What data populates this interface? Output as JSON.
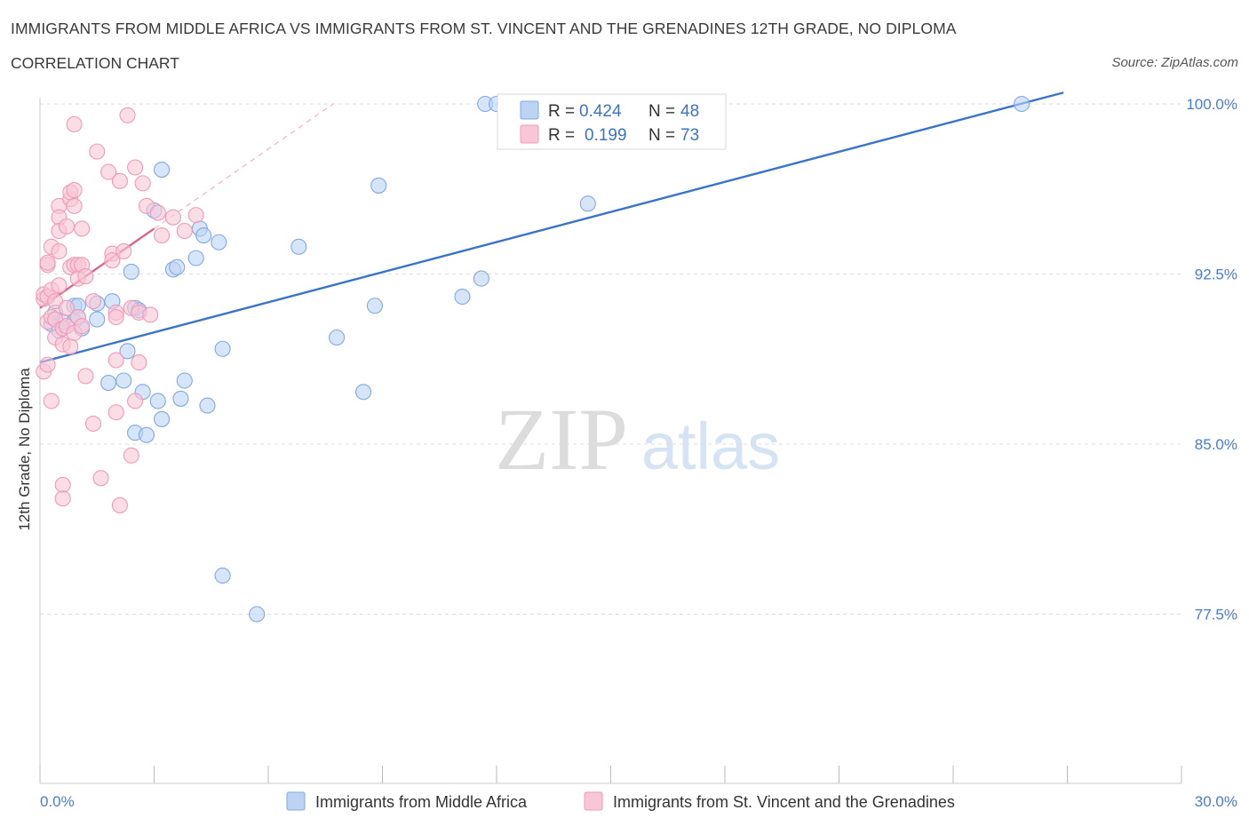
{
  "title": "IMMIGRANTS FROM MIDDLE AFRICA VS IMMIGRANTS FROM ST. VINCENT AND THE GRENADINES 12TH GRADE, NO DIPLOMA",
  "subtitle": "CORRELATION CHART",
  "source": "Source: ZipAtlas.com",
  "watermark": {
    "zip": "ZIP",
    "atlas": "atlas"
  },
  "chart_data": {
    "type": "scatter",
    "ylabel": "12th Grade, No Diploma",
    "xlim": [
      0,
      30
    ],
    "ylim": [
      70,
      100.8
    ],
    "x_tick_labels": [
      {
        "value": 0,
        "label": "0.0%"
      },
      {
        "value": 30,
        "label": "30.0%"
      }
    ],
    "y_ticks": [
      {
        "value": 100,
        "label": "100.0%"
      },
      {
        "value": 92.5,
        "label": "92.5%"
      },
      {
        "value": 85,
        "label": "85.0%"
      },
      {
        "value": 77.5,
        "label": "77.5%"
      }
    ],
    "legend_stats": [
      {
        "r_label": "R =",
        "r": "0.424",
        "n_label": "N =",
        "n": "48"
      },
      {
        "r_label": "R =",
        "r": "0.199",
        "n_label": "N =",
        "n": "73"
      }
    ],
    "series": [
      {
        "name": "Immigrants from Middle Africa",
        "color": "#7fa9e6",
        "fill": "#bcd3f3",
        "line_color": "#3a74c9",
        "trend": {
          "x": [
            0,
            26.9
          ],
          "y": [
            88.6,
            100.5
          ]
        },
        "points": [
          [
            0.3,
            90.3
          ],
          [
            0.4,
            90.8
          ],
          [
            0.5,
            90.0
          ],
          [
            0.6,
            90.4
          ],
          [
            0.9,
            90.4
          ],
          [
            0.9,
            91.1
          ],
          [
            1.0,
            91.1
          ],
          [
            1.1,
            90.1
          ],
          [
            1.0,
            90.6
          ],
          [
            1.5,
            91.2
          ],
          [
            1.5,
            90.5
          ],
          [
            1.8,
            87.7
          ],
          [
            1.9,
            91.3
          ],
          [
            2.2,
            87.8
          ],
          [
            2.3,
            89.1
          ],
          [
            2.4,
            92.6
          ],
          [
            2.5,
            85.5
          ],
          [
            2.5,
            91.0
          ],
          [
            2.6,
            90.9
          ],
          [
            2.7,
            87.3
          ],
          [
            2.8,
            85.4
          ],
          [
            3.0,
            95.3
          ],
          [
            3.1,
            86.9
          ],
          [
            3.2,
            86.1
          ],
          [
            3.2,
            97.1
          ],
          [
            3.5,
            92.7
          ],
          [
            3.6,
            92.8
          ],
          [
            3.7,
            87.0
          ],
          [
            3.8,
            87.8
          ],
          [
            4.1,
            93.2
          ],
          [
            4.2,
            94.5
          ],
          [
            4.3,
            94.2
          ],
          [
            4.4,
            86.7
          ],
          [
            4.7,
            93.9
          ],
          [
            4.8,
            89.2
          ],
          [
            4.8,
            79.2
          ],
          [
            5.7,
            77.5
          ],
          [
            6.8,
            93.7
          ],
          [
            7.8,
            89.7
          ],
          [
            8.5,
            87.3
          ],
          [
            8.8,
            91.1
          ],
          [
            8.9,
            96.4
          ],
          [
            11.1,
            91.5
          ],
          [
            11.6,
            92.3
          ],
          [
            11.7,
            100
          ],
          [
            12.0,
            100
          ],
          [
            14.4,
            95.6
          ],
          [
            25.8,
            100
          ]
        ]
      },
      {
        "name": "Immigrants from St. Vincent and the Grenadines",
        "color": "#f09ab8",
        "fill": "#f8c6d6",
        "line_color": "#e0608e",
        "trend": {
          "x": [
            0,
            3.0
          ],
          "y": [
            91.0,
            94.5
          ]
        },
        "trend_dashed": {
          "x": [
            3.0,
            7.7
          ],
          "y": [
            94.5,
            100
          ]
        },
        "points": [
          [
            0.1,
            88.2
          ],
          [
            0.1,
            91.4
          ],
          [
            0.1,
            91.6
          ],
          [
            0.2,
            91.5
          ],
          [
            0.2,
            92.9
          ],
          [
            0.2,
            90.4
          ],
          [
            0.2,
            88.5
          ],
          [
            0.2,
            93.0
          ],
          [
            0.3,
            90.6
          ],
          [
            0.3,
            86.9
          ],
          [
            0.3,
            93.7
          ],
          [
            0.3,
            91.8
          ],
          [
            0.4,
            91.3
          ],
          [
            0.4,
            90.5
          ],
          [
            0.4,
            89.7
          ],
          [
            0.5,
            92.0
          ],
          [
            0.5,
            95.5
          ],
          [
            0.5,
            95.0
          ],
          [
            0.5,
            94.4
          ],
          [
            0.5,
            93.5
          ],
          [
            0.6,
            90.1
          ],
          [
            0.6,
            89.4
          ],
          [
            0.6,
            83.2
          ],
          [
            0.6,
            82.6
          ],
          [
            0.7,
            94.6
          ],
          [
            0.7,
            90.2
          ],
          [
            0.7,
            91.0
          ],
          [
            0.8,
            92.8
          ],
          [
            0.8,
            89.3
          ],
          [
            0.8,
            95.8
          ],
          [
            0.8,
            96.1
          ],
          [
            0.9,
            96.2
          ],
          [
            0.9,
            99.1
          ],
          [
            0.9,
            95.5
          ],
          [
            0.9,
            89.9
          ],
          [
            0.9,
            92.9
          ],
          [
            1.0,
            92.9
          ],
          [
            1.0,
            92.3
          ],
          [
            1.0,
            90.6
          ],
          [
            1.1,
            90.2
          ],
          [
            1.1,
            94.5
          ],
          [
            1.1,
            92.9
          ],
          [
            1.2,
            92.4
          ],
          [
            1.2,
            88.0
          ],
          [
            1.4,
            91.3
          ],
          [
            1.4,
            85.9
          ],
          [
            1.5,
            97.9
          ],
          [
            1.6,
            83.5
          ],
          [
            1.8,
            97.0
          ],
          [
            1.9,
            93.4
          ],
          [
            1.9,
            93.1
          ],
          [
            2.0,
            86.4
          ],
          [
            2.0,
            90.8
          ],
          [
            2.0,
            88.7
          ],
          [
            2.0,
            90.6
          ],
          [
            2.1,
            82.3
          ],
          [
            2.1,
            96.6
          ],
          [
            2.2,
            93.5
          ],
          [
            2.3,
            99.5
          ],
          [
            2.4,
            84.5
          ],
          [
            2.4,
            91.0
          ],
          [
            2.5,
            97.2
          ],
          [
            2.5,
            86.9
          ],
          [
            2.6,
            90.8
          ],
          [
            2.6,
            88.6
          ],
          [
            2.7,
            96.5
          ],
          [
            2.8,
            95.5
          ],
          [
            2.9,
            90.7
          ],
          [
            3.1,
            95.2
          ],
          [
            3.2,
            94.2
          ],
          [
            3.5,
            95.0
          ],
          [
            3.8,
            94.4
          ],
          [
            4.1,
            95.1
          ]
        ]
      }
    ]
  }
}
